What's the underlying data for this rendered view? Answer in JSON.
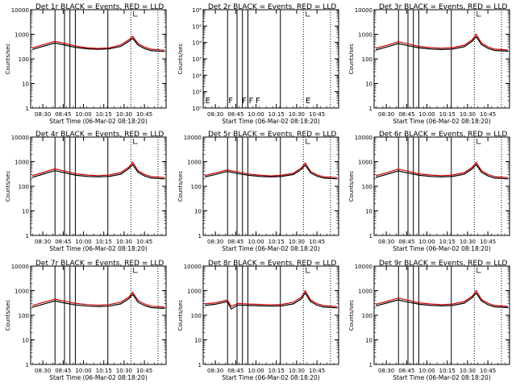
{
  "chart_data": [
    {
      "type": "line",
      "title": "Det 1r  BLACK = Events, RED = LLD",
      "xlabel": "Start Time (06-Mar-02 08:18:20)",
      "ylabel": "Counts/sec",
      "y_scale": "log",
      "ylim": [
        1,
        10000
      ],
      "y_ticks": [
        "1",
        "10",
        "100",
        "1000",
        "10000"
      ],
      "x_ticks": [
        "08:30",
        "08:45",
        "10:00",
        "10:15",
        "10:30",
        "10:45"
      ],
      "markers": [],
      "series": [
        {
          "color": "#000000",
          "x": [
            0,
            0.08,
            0.17,
            0.25,
            0.33,
            0.42,
            0.5,
            0.58,
            0.67,
            0.73,
            0.76,
            0.8,
            0.85,
            0.9,
            1.0
          ],
          "values": [
            240,
            320,
            440,
            360,
            290,
            255,
            245,
            255,
            320,
            520,
            680,
            360,
            260,
            215,
            200
          ]
        },
        {
          "color": "#cc0000",
          "x": [
            0,
            0.08,
            0.17,
            0.25,
            0.33,
            0.42,
            0.5,
            0.58,
            0.67,
            0.73,
            0.76,
            0.8,
            0.85,
            0.9,
            1.0
          ],
          "values": [
            280,
            370,
            520,
            420,
            330,
            280,
            265,
            280,
            370,
            600,
            820,
            420,
            300,
            245,
            225
          ]
        }
      ]
    },
    {
      "type": "line",
      "title": "Det 2r  BLACK = Events, RED = LLD",
      "xlabel": "Start Time (06-Mar-02 08:18:20)",
      "ylabel": "Counts/sec",
      "y_scale": "log",
      "ylim": [
        1,
        1000000
      ],
      "y_ticks": [
        "10⁰",
        "10¹",
        "10²",
        "10³",
        "10⁴",
        "10⁵",
        "10⁶"
      ],
      "x_ticks": [
        "08:30",
        "08:45",
        "10:00",
        "10:15",
        "10:30",
        "10:45"
      ],
      "markers": [
        "E",
        "F",
        "F",
        "F",
        "F",
        "E"
      ],
      "series": []
    },
    {
      "type": "line",
      "title": "Det 3r  BLACK = Events, RED = LLD",
      "xlabel": "Start Time (06-Mar-02 08:18:20)",
      "ylabel": "Counts/sec",
      "y_scale": "log",
      "ylim": [
        1,
        10000
      ],
      "y_ticks": [
        "1",
        "10",
        "100",
        "1000",
        "10000"
      ],
      "x_ticks": [
        "08:30",
        "08:45",
        "10:00",
        "10:15",
        "10:30",
        "10:45"
      ],
      "markers": [],
      "series": [
        {
          "color": "#000000",
          "x": [
            0,
            0.08,
            0.17,
            0.25,
            0.33,
            0.42,
            0.5,
            0.58,
            0.67,
            0.73,
            0.76,
            0.8,
            0.85,
            0.9,
            1.0
          ],
          "values": [
            230,
            300,
            420,
            340,
            280,
            250,
            240,
            250,
            310,
            520,
            800,
            380,
            265,
            220,
            205
          ]
        },
        {
          "color": "#cc0000",
          "x": [
            0,
            0.08,
            0.17,
            0.25,
            0.33,
            0.42,
            0.5,
            0.58,
            0.67,
            0.73,
            0.76,
            0.8,
            0.85,
            0.9,
            1.0
          ],
          "values": [
            270,
            350,
            500,
            400,
            320,
            285,
            270,
            285,
            360,
            600,
            1000,
            440,
            305,
            250,
            230
          ]
        }
      ]
    },
    {
      "type": "line",
      "title": "Det 4r  BLACK = Events, RED = LLD",
      "xlabel": "Start Time (06-Mar-02 08:18:20)",
      "ylabel": "Counts/sec",
      "y_scale": "log",
      "ylim": [
        1,
        10000
      ],
      "y_ticks": [
        "1",
        "10",
        "100",
        "1000",
        "10000"
      ],
      "x_ticks": [
        "08:30",
        "08:45",
        "10:00",
        "10:15",
        "10:30",
        "10:45"
      ],
      "markers": [],
      "series": [
        {
          "color": "#000000",
          "x": [
            0,
            0.08,
            0.17,
            0.25,
            0.33,
            0.42,
            0.5,
            0.58,
            0.67,
            0.73,
            0.76,
            0.8,
            0.85,
            0.9,
            1.0
          ],
          "values": [
            230,
            310,
            430,
            350,
            280,
            250,
            240,
            250,
            310,
            520,
            760,
            370,
            260,
            215,
            200
          ]
        },
        {
          "color": "#cc0000",
          "x": [
            0,
            0.08,
            0.17,
            0.25,
            0.33,
            0.42,
            0.5,
            0.58,
            0.67,
            0.73,
            0.76,
            0.8,
            0.85,
            0.9,
            1.0
          ],
          "values": [
            270,
            360,
            510,
            410,
            320,
            285,
            270,
            285,
            360,
            600,
            950,
            430,
            300,
            245,
            225
          ]
        }
      ]
    },
    {
      "type": "line",
      "title": "Det 5r  BLACK = Events, RED = LLD",
      "xlabel": "Start Time (06-Mar-02 08:18:20)",
      "ylabel": "Counts/sec",
      "y_scale": "log",
      "ylim": [
        1,
        10000
      ],
      "y_ticks": [
        "1",
        "10",
        "100",
        "1000",
        "10000"
      ],
      "x_ticks": [
        "08:30",
        "08:45",
        "10:00",
        "10:15",
        "10:30",
        "10:45"
      ],
      "markers": [],
      "series": [
        {
          "color": "#000000",
          "x": [
            0,
            0.08,
            0.17,
            0.25,
            0.33,
            0.42,
            0.5,
            0.58,
            0.67,
            0.73,
            0.76,
            0.8,
            0.85,
            0.9,
            1.0
          ],
          "values": [
            240,
            300,
            400,
            330,
            280,
            250,
            240,
            250,
            300,
            480,
            720,
            350,
            255,
            215,
            200
          ]
        },
        {
          "color": "#cc0000",
          "x": [
            0,
            0.08,
            0.17,
            0.25,
            0.33,
            0.42,
            0.5,
            0.58,
            0.67,
            0.73,
            0.76,
            0.8,
            0.85,
            0.9,
            1.0
          ],
          "values": [
            275,
            345,
            460,
            380,
            315,
            280,
            265,
            280,
            340,
            550,
            880,
            400,
            290,
            240,
            225
          ]
        }
      ]
    },
    {
      "type": "line",
      "title": "Det 6r  BLACK = Events, RED = LLD",
      "xlabel": "Start Time (06-Mar-02 08:18:20)",
      "ylabel": "Counts/sec",
      "y_scale": "log",
      "ylim": [
        1,
        10000
      ],
      "y_ticks": [
        "1",
        "10",
        "100",
        "1000",
        "10000"
      ],
      "x_ticks": [
        "08:30",
        "08:45",
        "10:00",
        "10:15",
        "10:30",
        "10:45"
      ],
      "markers": [],
      "series": [
        {
          "color": "#000000",
          "x": [
            0,
            0.08,
            0.17,
            0.25,
            0.33,
            0.42,
            0.5,
            0.58,
            0.67,
            0.73,
            0.76,
            0.8,
            0.85,
            0.9,
            1.0
          ],
          "values": [
            230,
            300,
            420,
            340,
            280,
            250,
            240,
            250,
            310,
            510,
            760,
            370,
            260,
            215,
            200
          ]
        },
        {
          "color": "#cc0000",
          "x": [
            0,
            0.08,
            0.17,
            0.25,
            0.33,
            0.42,
            0.5,
            0.58,
            0.67,
            0.73,
            0.76,
            0.8,
            0.85,
            0.9,
            1.0
          ],
          "values": [
            270,
            350,
            500,
            400,
            320,
            285,
            270,
            285,
            360,
            590,
            940,
            430,
            300,
            245,
            225
          ]
        }
      ]
    },
    {
      "type": "line",
      "title": "Det 7r  BLACK = Events, RED = LLD",
      "xlabel": "Start Time (06-Mar-02 08:18:20)",
      "ylabel": "Counts/sec",
      "y_scale": "log",
      "ylim": [
        1,
        10000
      ],
      "y_ticks": [
        "1",
        "10",
        "100",
        "1000",
        "10000"
      ],
      "x_ticks": [
        "08:30",
        "08:45",
        "10:00",
        "10:15",
        "10:30",
        "10:45"
      ],
      "markers": [],
      "series": [
        {
          "color": "#000000",
          "x": [
            0,
            0.08,
            0.17,
            0.25,
            0.33,
            0.42,
            0.5,
            0.58,
            0.67,
            0.73,
            0.76,
            0.8,
            0.85,
            0.9,
            1.0
          ],
          "values": [
            210,
            280,
            380,
            310,
            260,
            235,
            225,
            235,
            290,
            470,
            700,
            340,
            245,
            205,
            190
          ]
        },
        {
          "color": "#cc0000",
          "x": [
            0,
            0.08,
            0.17,
            0.25,
            0.33,
            0.42,
            0.5,
            0.58,
            0.67,
            0.73,
            0.76,
            0.8,
            0.85,
            0.9,
            1.0
          ],
          "values": [
            250,
            330,
            450,
            370,
            300,
            270,
            255,
            270,
            340,
            550,
            860,
            400,
            285,
            235,
            215
          ]
        }
      ]
    },
    {
      "type": "line",
      "title": "Det 8r  BLACK = Events, RED = LLD",
      "xlabel": "Start Time (06-Mar-02 08:18:20)",
      "ylabel": "Counts/sec",
      "y_scale": "log",
      "ylim": [
        1,
        10000
      ],
      "y_ticks": [
        "1",
        "10",
        "100",
        "1000",
        "10000"
      ],
      "x_ticks": [
        "08:30",
        "08:45",
        "10:00",
        "10:15",
        "10:30",
        "10:45"
      ],
      "markers": [],
      "series": [
        {
          "color": "#000000",
          "x": [
            0,
            0.08,
            0.17,
            0.2,
            0.25,
            0.33,
            0.42,
            0.5,
            0.58,
            0.67,
            0.73,
            0.76,
            0.8,
            0.85,
            0.9,
            1.0
          ],
          "values": [
            250,
            280,
            360,
            180,
            260,
            250,
            240,
            235,
            240,
            290,
            460,
            800,
            360,
            255,
            215,
            200
          ]
        },
        {
          "color": "#cc0000",
          "x": [
            0,
            0.08,
            0.17,
            0.2,
            0.25,
            0.33,
            0.42,
            0.5,
            0.58,
            0.67,
            0.73,
            0.76,
            0.8,
            0.85,
            0.9,
            1.0
          ],
          "values": [
            290,
            320,
            420,
            230,
            300,
            285,
            275,
            265,
            275,
            340,
            540,
            1000,
            420,
            295,
            245,
            225
          ]
        }
      ]
    },
    {
      "type": "line",
      "title": "Det 9r  BLACK = Events, RED = LLD",
      "xlabel": "Start Time (06-Mar-02 08:18:20)",
      "ylabel": "Counts/sec",
      "y_scale": "log",
      "ylim": [
        1,
        10000
      ],
      "y_ticks": [
        "1",
        "10",
        "100",
        "1000",
        "10000"
      ],
      "x_ticks": [
        "08:30",
        "08:45",
        "10:00",
        "10:15",
        "10:30",
        "10:45"
      ],
      "markers": [],
      "series": [
        {
          "color": "#000000",
          "x": [
            0,
            0.08,
            0.17,
            0.25,
            0.33,
            0.42,
            0.5,
            0.58,
            0.67,
            0.73,
            0.76,
            0.8,
            0.85,
            0.9,
            1.0
          ],
          "values": [
            240,
            310,
            420,
            340,
            280,
            250,
            240,
            250,
            310,
            520,
            800,
            380,
            265,
            220,
            205
          ]
        },
        {
          "color": "#cc0000",
          "x": [
            0,
            0.08,
            0.17,
            0.25,
            0.33,
            0.42,
            0.5,
            0.58,
            0.67,
            0.73,
            0.76,
            0.8,
            0.85,
            0.9,
            1.0
          ],
          "values": [
            280,
            360,
            500,
            400,
            320,
            285,
            270,
            285,
            360,
            600,
            1000,
            440,
            305,
            250,
            230
          ]
        }
      ]
    }
  ]
}
